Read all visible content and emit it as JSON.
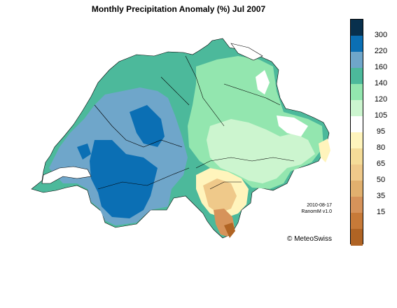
{
  "title": "Monthly Precipitation Anomaly (%) Jul 2007",
  "meta": {
    "date": "2010-08-17",
    "product": "RanomM v1.0",
    "credit": "© MeteoSwiss"
  },
  "legend": {
    "colors": [
      "#08304d",
      "#0b6fb4",
      "#6fa6ca",
      "#4cb99b",
      "#93e6af",
      "#ccf5cf",
      "#ffffff",
      "#fff4bc",
      "#f5dc98",
      "#efc98a",
      "#e1b06e",
      "#d6935a",
      "#c77a38",
      "#b06424"
    ],
    "labels": [
      "300",
      "220",
      "160",
      "140",
      "120",
      "105",
      "95",
      "80",
      "65",
      "50",
      "35",
      "15"
    ]
  }
}
